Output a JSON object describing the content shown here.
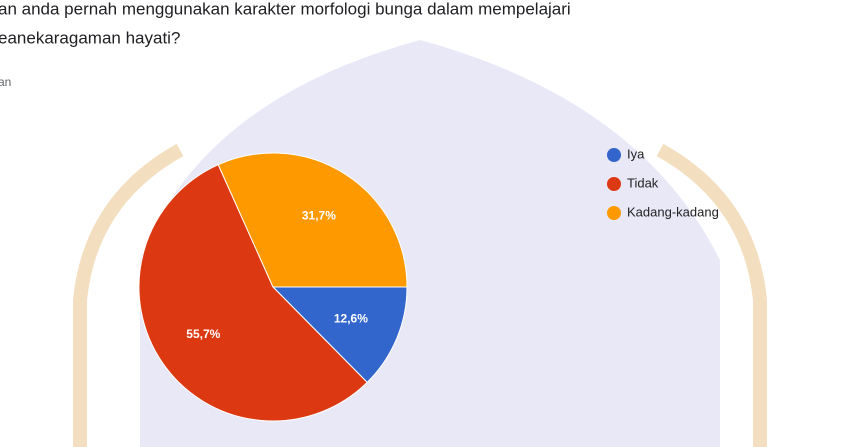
{
  "chart_data": {
    "type": "pie",
    "title": [
      "an anda pernah menggunakan karakter morfologi bunga dalam mempelajari",
      "eanekaragaman hayati?"
    ],
    "subtitle": "an",
    "categories": [
      "Iya",
      "Tidak",
      "Kadang-kadang"
    ],
    "values": [
      12.6,
      55.7,
      31.7
    ],
    "value_labels": [
      "12,6%",
      "55,7%",
      "31,7%"
    ],
    "colors": [
      "#3366cc",
      "#dc3912",
      "#ff9900"
    ],
    "start_angle": 90,
    "legend": "right"
  }
}
